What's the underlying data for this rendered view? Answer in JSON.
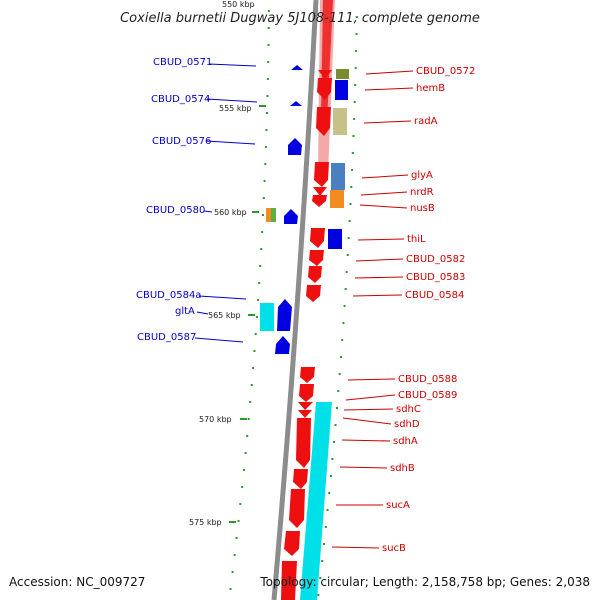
{
  "title": "Coxiella burnetii Dugway 5J108-111, complete genome",
  "accession": "Accession: NC_009727",
  "topology": "Topology: circular; Length: 2,158,758 bp; Genes: 2,038",
  "colors": {
    "forward_strand": "#0000e0",
    "reverse_strand": "#e00000",
    "backbone": "#8c8c8c",
    "cyan_feature": "#00e0e8",
    "tick": "#2a9a2a"
  },
  "kbp_labels": [
    "550 kbp",
    "555 kbp",
    "560 kbp",
    "565 kbp",
    "570 kbp",
    "575 kbp"
  ],
  "left_genes": [
    "CBUD_0571",
    "CBUD_0574",
    "CBUD_0576",
    "CBUD_0580",
    "CBUD_0584a",
    "gltA",
    "CBUD_0587"
  ],
  "right_genes": [
    "CBUD_0572",
    "hemB",
    "radA",
    "glyA",
    "nrdR",
    "nusB",
    "thiL",
    "CBUD_0582",
    "CBUD_0583",
    "CBUD_0584",
    "CBUD_0588",
    "CBUD_0589",
    "sdhC",
    "sdhD",
    "sdhA",
    "sdhB",
    "sucA",
    "sucB"
  ]
}
